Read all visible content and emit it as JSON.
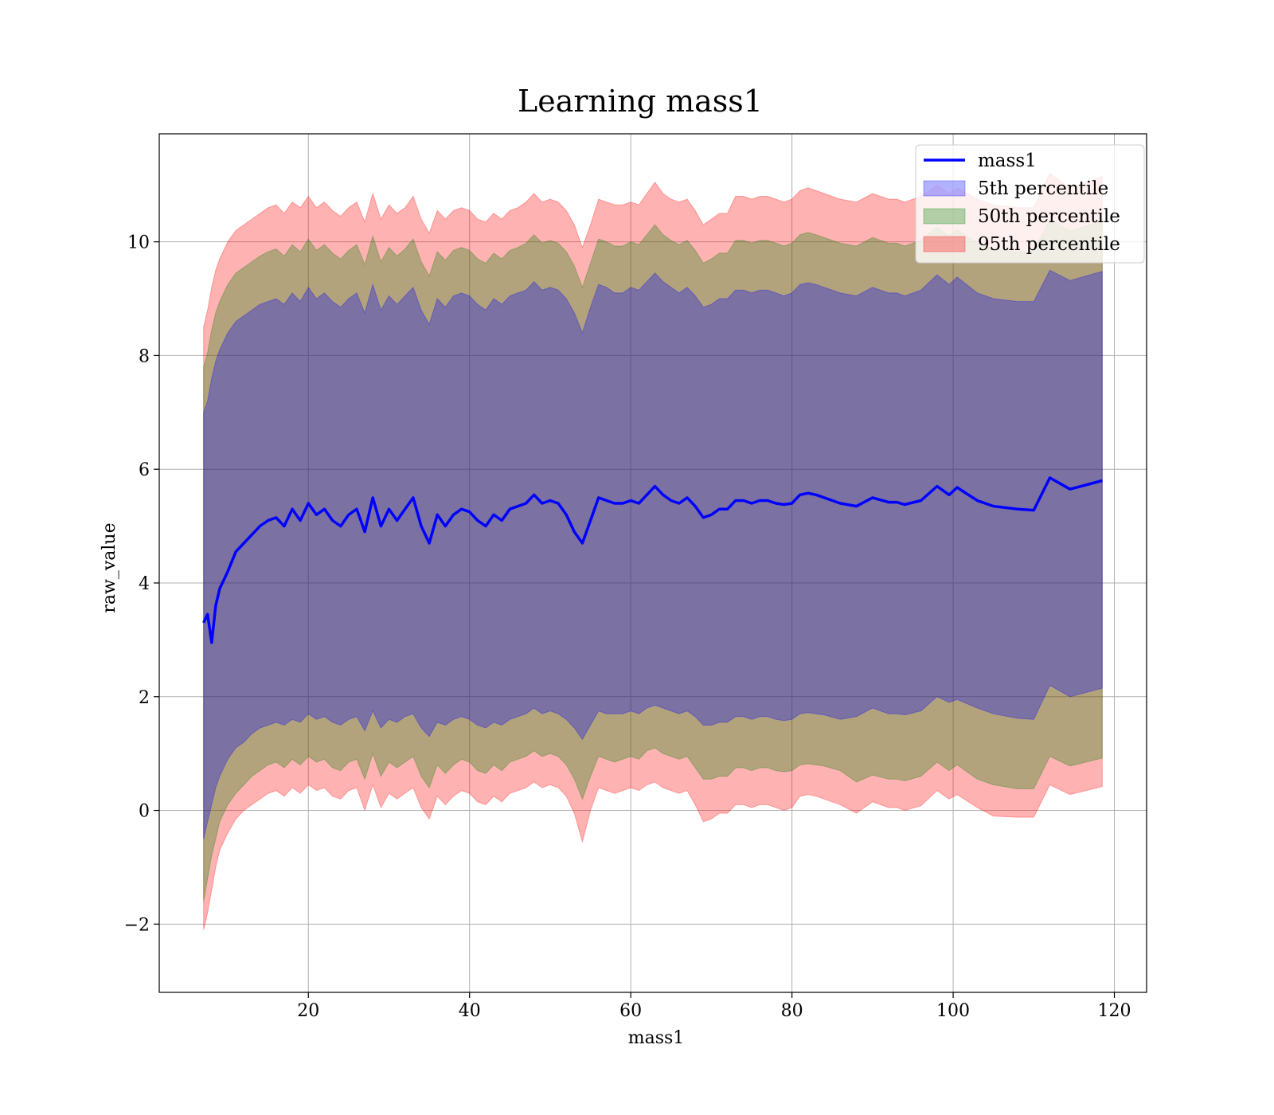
{
  "chart_data": {
    "type": "area",
    "title": "Learning mass1",
    "xlabel": "mass1",
    "ylabel": "raw_value",
    "xlim": [
      1.5,
      124
    ],
    "ylim": [
      -3.2,
      11.9
    ],
    "xticks": [
      20,
      40,
      60,
      80,
      100,
      120
    ],
    "yticks": [
      -2,
      0,
      2,
      4,
      6,
      8,
      10
    ],
    "xtick_labels": [
      "20",
      "40",
      "60",
      "80",
      "100",
      "120"
    ],
    "ytick_labels": [
      "−2",
      "0",
      "2",
      "4",
      "6",
      "8",
      "10"
    ],
    "grid": true,
    "legend_position": "upper right",
    "legend": [
      "mass1",
      "5th percentile",
      "50th percentile",
      "95th percentile"
    ],
    "x": [
      7,
      7.5,
      8,
      8.5,
      9,
      10,
      11,
      12,
      13,
      14,
      15,
      16,
      17,
      18,
      19,
      20,
      21,
      22,
      23,
      24,
      25,
      26,
      27,
      28,
      29,
      30,
      31,
      32,
      33,
      34,
      35,
      36,
      37,
      38,
      39,
      40,
      41,
      42,
      43,
      44,
      45,
      46,
      47,
      48,
      49,
      50,
      51,
      52,
      53,
      54,
      55,
      56,
      57,
      58,
      59,
      60,
      61,
      62,
      63,
      64,
      65,
      66,
      67,
      68,
      69,
      70,
      71,
      72,
      73,
      74,
      75,
      76,
      77,
      78,
      79,
      80,
      81,
      82,
      83,
      84,
      86,
      88,
      90,
      92,
      93,
      94,
      96,
      98,
      99.5,
      100.5,
      103,
      105,
      108,
      110,
      112,
      114.5,
      118.5
    ],
    "series": [
      {
        "name": "mass1",
        "type": "line",
        "color": "#0000ff",
        "values": [
          3.3,
          3.45,
          2.95,
          3.6,
          3.9,
          4.2,
          4.55,
          4.7,
          4.85,
          5.0,
          5.1,
          5.15,
          5.0,
          5.3,
          5.1,
          5.4,
          5.2,
          5.3,
          5.1,
          5.0,
          5.2,
          5.3,
          4.9,
          5.5,
          5.0,
          5.3,
          5.1,
          5.3,
          5.5,
          5.0,
          4.7,
          5.2,
          5.0,
          5.2,
          5.3,
          5.25,
          5.1,
          5.0,
          5.2,
          5.1,
          5.3,
          5.35,
          5.4,
          5.55,
          5.4,
          5.45,
          5.4,
          5.2,
          4.9,
          4.7,
          5.1,
          5.5,
          5.45,
          5.4,
          5.4,
          5.45,
          5.4,
          5.55,
          5.7,
          5.55,
          5.45,
          5.4,
          5.5,
          5.35,
          5.15,
          5.2,
          5.3,
          5.3,
          5.45,
          5.45,
          5.4,
          5.45,
          5.45,
          5.4,
          5.38,
          5.4,
          5.55,
          5.58,
          5.55,
          5.5,
          5.4,
          5.35,
          5.5,
          5.42,
          5.42,
          5.38,
          5.45,
          5.7,
          5.55,
          5.68,
          5.45,
          5.35,
          5.3,
          5.28,
          5.85,
          5.65,
          5.8
        ]
      },
      {
        "name": "5th percentile",
        "type": "band",
        "color": "#0000ff",
        "lower": [
          -0.5,
          -0.2,
          0.1,
          0.4,
          0.6,
          0.9,
          1.1,
          1.2,
          1.35,
          1.45,
          1.5,
          1.55,
          1.5,
          1.6,
          1.55,
          1.7,
          1.6,
          1.65,
          1.55,
          1.5,
          1.6,
          1.65,
          1.4,
          1.75,
          1.45,
          1.6,
          1.55,
          1.65,
          1.7,
          1.45,
          1.3,
          1.55,
          1.5,
          1.6,
          1.65,
          1.6,
          1.5,
          1.45,
          1.55,
          1.5,
          1.6,
          1.65,
          1.7,
          1.8,
          1.7,
          1.75,
          1.7,
          1.6,
          1.45,
          1.25,
          1.5,
          1.75,
          1.7,
          1.7,
          1.7,
          1.75,
          1.7,
          1.8,
          1.85,
          1.8,
          1.75,
          1.7,
          1.75,
          1.65,
          1.5,
          1.5,
          1.55,
          1.55,
          1.65,
          1.65,
          1.6,
          1.65,
          1.65,
          1.6,
          1.58,
          1.6,
          1.7,
          1.72,
          1.7,
          1.68,
          1.6,
          1.65,
          1.8,
          1.7,
          1.7,
          1.68,
          1.75,
          2.0,
          1.9,
          1.95,
          1.8,
          1.7,
          1.62,
          1.6,
          2.2,
          2.0,
          2.15
        ],
        "upper": [
          7.0,
          7.2,
          7.6,
          7.9,
          8.1,
          8.4,
          8.6,
          8.7,
          8.8,
          8.9,
          8.95,
          9.0,
          8.9,
          9.1,
          8.95,
          9.2,
          9.0,
          9.1,
          8.95,
          8.85,
          9.0,
          9.1,
          8.75,
          9.25,
          8.8,
          9.05,
          8.9,
          9.05,
          9.2,
          8.8,
          8.55,
          9.0,
          8.85,
          9.05,
          9.1,
          9.05,
          8.9,
          8.8,
          9.0,
          8.9,
          9.05,
          9.1,
          9.15,
          9.3,
          9.15,
          9.2,
          9.15,
          9.0,
          8.75,
          8.4,
          8.85,
          9.25,
          9.2,
          9.1,
          9.1,
          9.2,
          9.15,
          9.3,
          9.45,
          9.3,
          9.2,
          9.1,
          9.2,
          9.05,
          8.85,
          8.9,
          9.0,
          9.0,
          9.15,
          9.15,
          9.1,
          9.15,
          9.15,
          9.1,
          9.05,
          9.1,
          9.25,
          9.28,
          9.25,
          9.2,
          9.1,
          9.05,
          9.2,
          9.1,
          9.1,
          9.05,
          9.15,
          9.42,
          9.25,
          9.38,
          9.1,
          9.0,
          8.95,
          8.95,
          9.5,
          9.32,
          9.48
        ]
      },
      {
        "name": "50th percentile",
        "type": "band",
        "color": "#008000",
        "lower": [
          -1.6,
          -1.2,
          -0.8,
          -0.5,
          -0.2,
          0.1,
          0.3,
          0.45,
          0.6,
          0.7,
          0.8,
          0.85,
          0.75,
          0.9,
          0.8,
          0.95,
          0.85,
          0.9,
          0.75,
          0.7,
          0.85,
          0.9,
          0.55,
          1.0,
          0.6,
          0.85,
          0.75,
          0.85,
          0.95,
          0.6,
          0.4,
          0.8,
          0.65,
          0.8,
          0.9,
          0.85,
          0.7,
          0.65,
          0.8,
          0.7,
          0.85,
          0.9,
          0.95,
          1.05,
          0.95,
          1.0,
          0.95,
          0.8,
          0.55,
          0.2,
          0.6,
          0.95,
          0.9,
          0.85,
          0.9,
          0.95,
          0.9,
          1.05,
          1.1,
          1.0,
          0.95,
          0.9,
          0.95,
          0.75,
          0.55,
          0.55,
          0.6,
          0.6,
          0.75,
          0.75,
          0.7,
          0.75,
          0.75,
          0.7,
          0.68,
          0.7,
          0.8,
          0.82,
          0.8,
          0.78,
          0.7,
          0.5,
          0.62,
          0.55,
          0.55,
          0.52,
          0.6,
          0.85,
          0.7,
          0.8,
          0.55,
          0.45,
          0.38,
          0.38,
          0.95,
          0.78,
          0.92
        ]
      },
      {
        "name": "95th percentile",
        "type": "band",
        "color": "#ff0000",
        "lower": [
          -2.1,
          -1.8,
          -1.4,
          -1.0,
          -0.7,
          -0.4,
          -0.15,
          0.0,
          0.1,
          0.2,
          0.3,
          0.35,
          0.25,
          0.4,
          0.3,
          0.45,
          0.35,
          0.4,
          0.25,
          0.2,
          0.35,
          0.4,
          0.0,
          0.45,
          0.05,
          0.3,
          0.2,
          0.3,
          0.4,
          0.05,
          -0.15,
          0.25,
          0.1,
          0.25,
          0.35,
          0.3,
          0.15,
          0.1,
          0.25,
          0.15,
          0.3,
          0.35,
          0.4,
          0.5,
          0.4,
          0.45,
          0.4,
          0.25,
          -0.05,
          -0.55,
          0.0,
          0.4,
          0.35,
          0.3,
          0.35,
          0.4,
          0.35,
          0.45,
          0.5,
          0.4,
          0.35,
          0.3,
          0.35,
          0.1,
          -0.2,
          -0.15,
          -0.05,
          -0.05,
          0.1,
          0.1,
          0.05,
          0.1,
          0.1,
          0.05,
          0.0,
          0.05,
          0.25,
          0.28,
          0.25,
          0.2,
          0.1,
          -0.05,
          0.15,
          0.05,
          0.05,
          0.0,
          0.08,
          0.35,
          0.2,
          0.28,
          0.05,
          -0.1,
          -0.12,
          -0.12,
          0.45,
          0.28,
          0.42
        ],
        "upper": [
          8.5,
          8.8,
          9.2,
          9.5,
          9.7,
          10.0,
          10.2,
          10.3,
          10.4,
          10.5,
          10.6,
          10.65,
          10.5,
          10.7,
          10.6,
          10.8,
          10.6,
          10.7,
          10.55,
          10.45,
          10.6,
          10.7,
          10.35,
          10.85,
          10.4,
          10.65,
          10.5,
          10.6,
          10.8,
          10.4,
          10.15,
          10.55,
          10.4,
          10.55,
          10.6,
          10.55,
          10.4,
          10.35,
          10.5,
          10.4,
          10.55,
          10.6,
          10.7,
          10.85,
          10.7,
          10.75,
          10.7,
          10.55,
          10.3,
          9.9,
          10.3,
          10.75,
          10.7,
          10.65,
          10.65,
          10.7,
          10.65,
          10.85,
          11.05,
          10.85,
          10.75,
          10.7,
          10.75,
          10.55,
          10.3,
          10.4,
          10.5,
          10.5,
          10.8,
          10.8,
          10.75,
          10.8,
          10.8,
          10.75,
          10.7,
          10.75,
          10.9,
          10.95,
          10.9,
          10.85,
          10.75,
          10.7,
          10.85,
          10.75,
          10.75,
          10.7,
          10.8,
          11.0,
          10.85,
          10.95,
          10.75,
          10.65,
          10.6,
          10.6,
          11.2,
          10.95,
          11.15
        ]
      }
    ]
  }
}
